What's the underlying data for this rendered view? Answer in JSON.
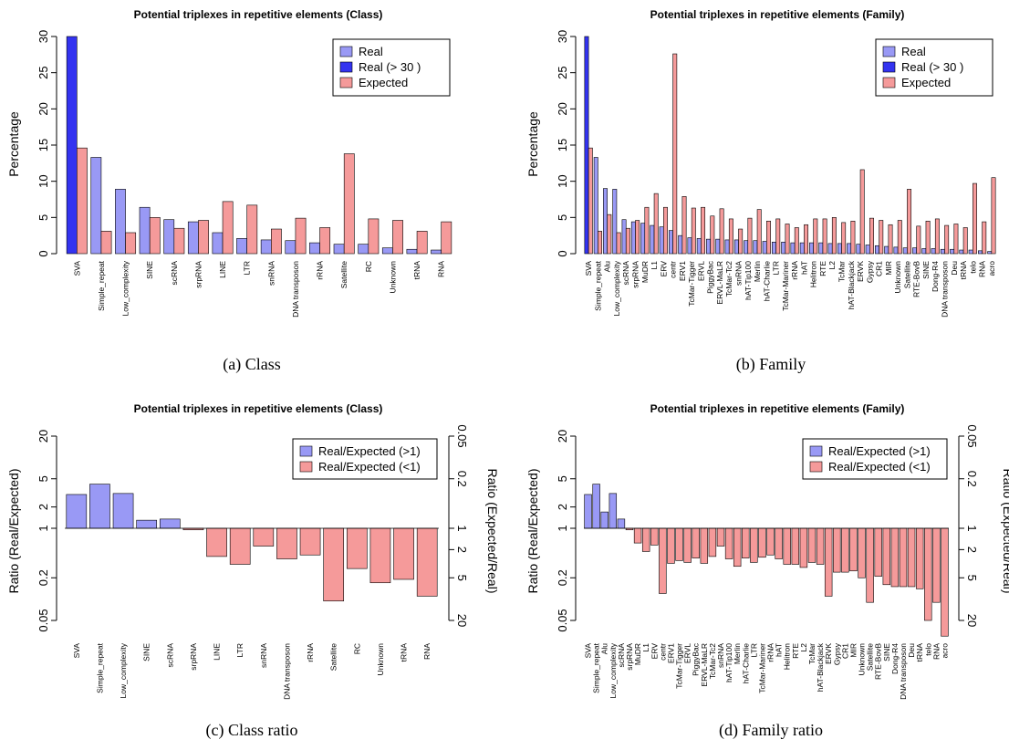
{
  "colors": {
    "real": "#9999f5",
    "real_over": "#3333f0",
    "expected": "#f59a9a",
    "stroke": "#000000"
  },
  "chart_data": [
    {
      "type": "bar",
      "title": "Potential triplexes in repetitive elements (Class)",
      "caption": "(a) Class",
      "ylabel": "Percentage",
      "ylim": [
        0,
        30
      ],
      "yticks": [
        0,
        5,
        10,
        15,
        20,
        25,
        30
      ],
      "legend": [
        "Real",
        "Real (> 30 )",
        "Expected"
      ],
      "legend_position": "top-right",
      "categories": [
        "SVA",
        "Simple_repeat",
        "Low_complexity",
        "SINE",
        "scRNA",
        "srpRNA",
        "LINE",
        "LTR",
        "snRNA",
        "DNA transposon",
        "rRNA",
        "Satellite",
        "RC",
        "Unknown",
        "tRNA",
        "RNA"
      ],
      "series": [
        {
          "name": "Real",
          "values": [
            30,
            13.3,
            8.9,
            6.4,
            4.7,
            4.4,
            2.9,
            2.1,
            1.9,
            1.8,
            1.5,
            1.3,
            1.3,
            0.8,
            0.6,
            0.5
          ]
        },
        {
          "name": "Expected",
          "values": [
            14.6,
            3.1,
            2.9,
            5.0,
            3.5,
            4.6,
            7.2,
            6.7,
            3.4,
            4.9,
            3.6,
            13.8,
            4.8,
            4.6,
            3.1,
            4.4
          ]
        }
      ],
      "over_limit": [
        0
      ]
    },
    {
      "type": "bar",
      "title": "Potential triplexes in repetitive elements (Family)",
      "caption": "(b) Family",
      "ylabel": "Percentage",
      "ylim": [
        0,
        30
      ],
      "yticks": [
        0,
        5,
        10,
        15,
        20,
        25,
        30
      ],
      "legend": [
        "Real",
        "Real (> 30 )",
        "Expected"
      ],
      "legend_position": "top-right",
      "categories": [
        "SVA",
        "Simple_repeat",
        "Alu",
        "Low_complexity",
        "scRNA",
        "srpRNA",
        "MuDR",
        "L1",
        "ERV",
        "centr",
        "ERV1",
        "TcMar-Tigger",
        "ERVL",
        "PiggyBac",
        "ERVL-MaLR",
        "TcMar-Tc2",
        "snRNA",
        "hAT-Tip100",
        "Merlin",
        "hAT-Charlie",
        "LTR",
        "TcMar-Mariner",
        "rRNA",
        "hAT",
        "Helitron",
        "RTE",
        "L2",
        "TcMar",
        "hAT-Blackjack",
        "ERVK",
        "Gypsy",
        "CR1",
        "MIR",
        "Unknown",
        "Satellite",
        "RTE-BovB",
        "SINE",
        "Dong-R4",
        "DNA transposon",
        "Deu",
        "tRNA",
        "telo",
        "RNA",
        "acro"
      ],
      "series": [
        {
          "name": "Real",
          "values": [
            30,
            13.3,
            9.0,
            8.9,
            4.7,
            4.4,
            4.2,
            3.9,
            3.7,
            3.2,
            2.5,
            2.2,
            2.1,
            2.0,
            2.0,
            1.9,
            1.9,
            1.8,
            1.8,
            1.7,
            1.6,
            1.6,
            1.5,
            1.5,
            1.5,
            1.5,
            1.4,
            1.4,
            1.4,
            1.3,
            1.2,
            1.1,
            1.0,
            0.9,
            0.8,
            0.8,
            0.7,
            0.7,
            0.6,
            0.6,
            0.5,
            0.5,
            0.4,
            0.3
          ]
        },
        {
          "name": "Expected",
          "values": [
            14.6,
            3.1,
            5.4,
            2.9,
            3.5,
            4.6,
            6.4,
            8.3,
            6.4,
            27.6,
            7.9,
            6.3,
            6.4,
            5.2,
            6.2,
            4.8,
            3.4,
            4.9,
            6.1,
            4.5,
            4.8,
            4.1,
            3.6,
            4.0,
            4.8,
            4.8,
            5.0,
            4.3,
            4.5,
            11.6,
            4.9,
            4.6,
            4.0,
            4.6,
            8.9,
            3.8,
            4.5,
            4.8,
            3.9,
            4.1,
            3.6,
            9.7,
            4.4,
            10.5
          ]
        }
      ],
      "over_limit": [
        0
      ]
    },
    {
      "type": "bar",
      "title": "Potential triplexes in repetitive elements (Class)",
      "caption": "(c) Class ratio",
      "ylabel": "Ratio (Real/Expected)",
      "ylabel_right": "Ratio (Expected/Real)",
      "yscale": "log",
      "ylim": [
        0.05,
        20
      ],
      "yticks": [
        "0.05",
        "0.2",
        "1",
        "2",
        "5",
        "20"
      ],
      "yticks_right": [
        "20",
        "5",
        "2",
        "1",
        "0.2",
        "0.05"
      ],
      "legend": [
        "Real/Expected (>1)",
        "Real/Expected (<1)"
      ],
      "legend_position": "top-right",
      "categories": [
        "SVA",
        "Simple_repeat",
        "Low_complexity",
        "SINE",
        "scRNA",
        "srpRNA",
        "LINE",
        "LTR",
        "snRNA",
        "DNA transposon",
        "rRNA",
        "Satellite",
        "RC",
        "Unknown",
        "tRNA",
        "RNA"
      ],
      "values": [
        3.0,
        4.2,
        3.1,
        1.3,
        1.35,
        0.95,
        0.4,
        0.31,
        0.56,
        0.37,
        0.42,
        0.094,
        0.27,
        0.17,
        0.19,
        0.11
      ]
    },
    {
      "type": "bar",
      "title": "Potential triplexes in repetitive elements (Family)",
      "caption": "(d) Family ratio",
      "ylabel": "Ratio (Real/Expected)",
      "ylabel_right": "Ratio (Expected/Real)",
      "yscale": "log",
      "ylim": [
        0.05,
        20
      ],
      "yticks": [
        "0.05",
        "0.2",
        "1",
        "2",
        "5",
        "20"
      ],
      "yticks_right": [
        "20",
        "5",
        "2",
        "1",
        "0.2",
        "0.05"
      ],
      "legend": [
        "Real/Expected (>1)",
        "Real/Expected (<1)"
      ],
      "legend_position": "top-right",
      "categories": [
        "SVA",
        "Simple_repeat",
        "Alu",
        "Low_complexity",
        "scRNA",
        "srpRNA",
        "MuDR",
        "L1",
        "ERV",
        "centr",
        "ERV1",
        "TcMar-Tigger",
        "ERVL",
        "PiggyBac",
        "ERVL-MaLR",
        "TcMar-Tc2",
        "snRNA",
        "hAT-Tip100",
        "Merlin",
        "hAT-Charlie",
        "LTR",
        "TcMar-Mariner",
        "rRNA",
        "hAT",
        "Helitron",
        "RTE",
        "L2",
        "TcMar",
        "hAT-Blackjack",
        "ERVK",
        "Gypsy",
        "CR1",
        "MIR",
        "Unknown",
        "Satellite",
        "RTE-BovB",
        "SINE",
        "Dong-R4",
        "DNA transposon",
        "Deu",
        "tRNA",
        "telo",
        "RNA",
        "acro"
      ],
      "values": [
        3.0,
        4.2,
        1.7,
        3.1,
        1.35,
        0.95,
        0.62,
        0.47,
        0.58,
        0.12,
        0.32,
        0.35,
        0.33,
        0.38,
        0.32,
        0.4,
        0.56,
        0.37,
        0.29,
        0.38,
        0.33,
        0.39,
        0.42,
        0.37,
        0.31,
        0.31,
        0.28,
        0.33,
        0.31,
        0.11,
        0.24,
        0.24,
        0.25,
        0.2,
        0.09,
        0.21,
        0.16,
        0.15,
        0.15,
        0.15,
        0.14,
        0.05,
        0.09,
        0.03
      ]
    }
  ]
}
